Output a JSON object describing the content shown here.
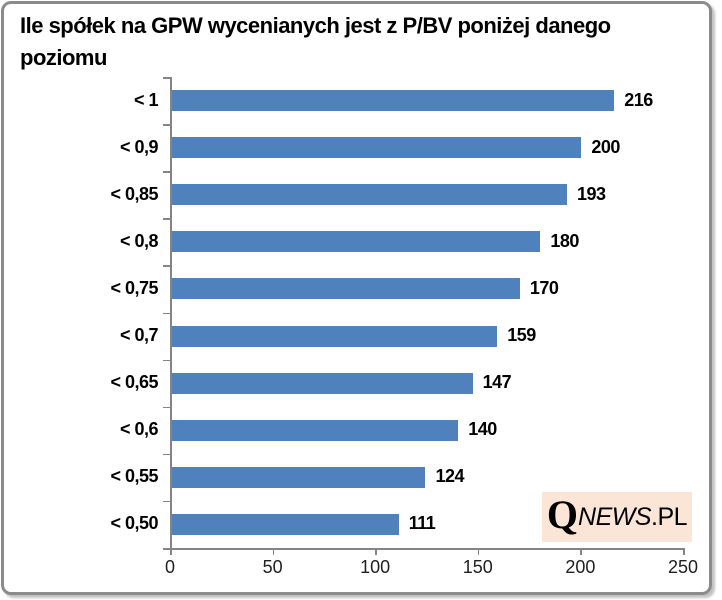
{
  "chart_data": {
    "type": "bar",
    "orientation": "horizontal",
    "title": "Ile spółek na GPW wycenianych jest z P/BV poniżej danego poziomu",
    "categories": [
      "< 1",
      "< 0,9",
      "< 0,85",
      "< 0,8",
      "< 0,75",
      "< 0,7",
      "< 0,65",
      "< 0,6",
      "< 0,55",
      "< 0,50"
    ],
    "values": [
      216,
      200,
      193,
      180,
      170,
      159,
      147,
      140,
      124,
      111
    ],
    "xlabel": "",
    "ylabel": "",
    "xlim": [
      0,
      250
    ],
    "xticks": [
      "0",
      "50",
      "100",
      "150",
      "200",
      "250"
    ],
    "grid": false,
    "legend": false,
    "data_labels": true,
    "bar_color": "#4f81bd",
    "axis_color": "#848484",
    "label_color": "#000000"
  },
  "logo": {
    "q": "Q",
    "news": "NEWS",
    "suffix": ".PL",
    "bg_color": "#fbe5d6"
  },
  "frame": {
    "border_color": "#8b8b8b"
  }
}
